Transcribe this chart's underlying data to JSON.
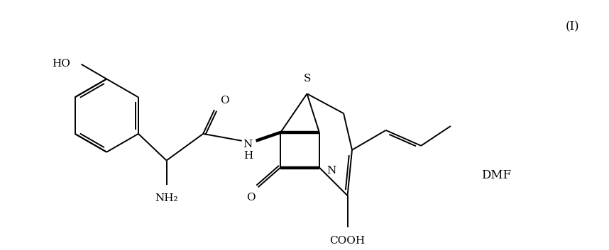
{
  "background_color": "#ffffff",
  "text_color": "#000000",
  "label_I": "(I)",
  "label_DMF": "DMF",
  "label_HO": "HO",
  "label_NH2": "NH₂",
  "label_O_amide": "O",
  "label_NH": "N\nH",
  "label_N": "N",
  "label_S": "S",
  "label_O_lactam": "O",
  "label_COOH": "COOH",
  "figsize": [
    8.58,
    3.53
  ],
  "dpi": 100,
  "lw": 1.4
}
